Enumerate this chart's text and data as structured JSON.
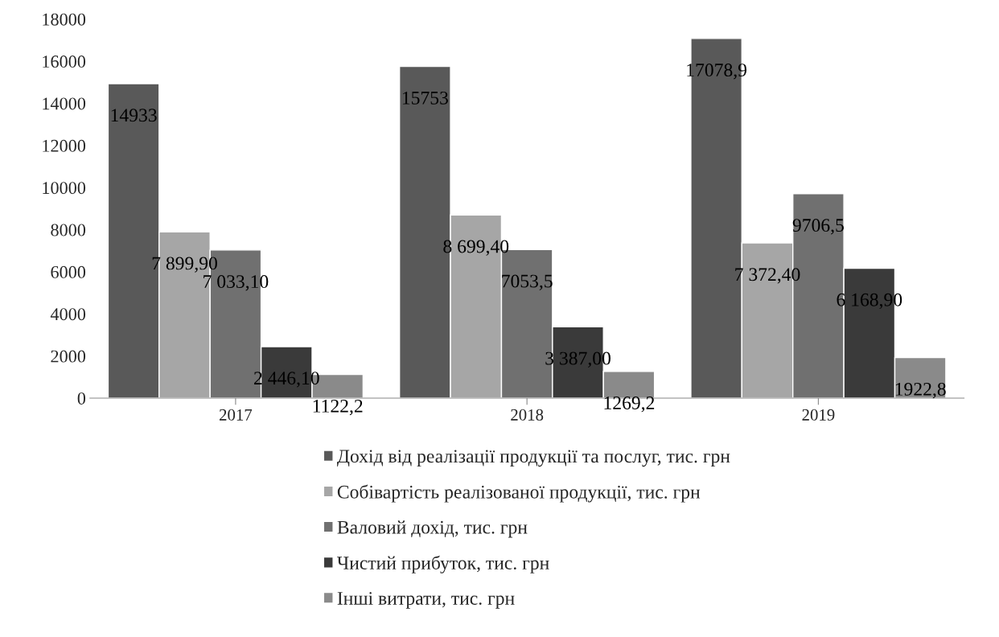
{
  "chart_data": {
    "type": "bar",
    "categories": [
      "2017",
      "2018",
      "2019"
    ],
    "ylim": [
      0,
      18000
    ],
    "yticks": [
      0,
      2000,
      4000,
      6000,
      8000,
      10000,
      12000,
      14000,
      16000,
      18000
    ],
    "grid": false,
    "legend": "bottom",
    "series": [
      {
        "name": "Дохід від реалізації продукції та послуг, тис. грн",
        "color": "#595959",
        "values": [
          14933,
          15753,
          17078.9
        ],
        "value_labels": [
          "14933",
          "15753",
          "17078,9"
        ]
      },
      {
        "name": "Собівартість реалізованої продукції, тис. грн",
        "color": "#a6a6a6",
        "values": [
          7899.9,
          8699.4,
          7372.4
        ],
        "value_labels": [
          "7 899,90",
          "8 699,40",
          "7 372,40"
        ]
      },
      {
        "name": "Валовий дохід, тис. грн",
        "color": "#707070",
        "values": [
          7033.1,
          7053.5,
          9706.5
        ],
        "value_labels": [
          "7 033,10",
          "7053,5",
          "9706,5"
        ]
      },
      {
        "name": "Чистий прибуток, тис. грн",
        "color": "#3a3a3a",
        "values": [
          2446.1,
          3387.0,
          6168.9
        ],
        "value_labels": [
          "2 446,10",
          "3 387,00",
          "6 168,90"
        ]
      },
      {
        "name": "Інші витрати, тис. грн",
        "color": "#8a8a8a",
        "values": [
          1122.2,
          1269.2,
          1922.8
        ],
        "value_labels": [
          "1122,2",
          "1269,2",
          "1922,8"
        ]
      }
    ]
  }
}
